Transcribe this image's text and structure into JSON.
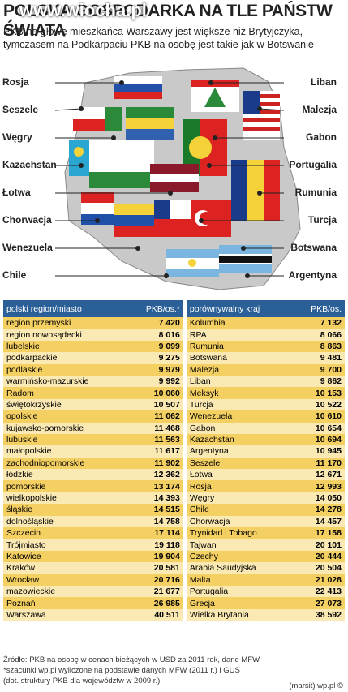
{
  "header": {
    "title": "POLSKA GOSPODARKA NA TLE PAŃSTW ŚWIATA",
    "watermark": "www.wiocha.pl",
    "subtitle": [
      "PKB na głowę mieszkańca Warszawy jest większe niż Brytyjczyka,",
      "tymczasem na Podkarpaciu PKB na osobę jest takie jak w Botswanie"
    ]
  },
  "map": {
    "left": [
      "Rosja",
      "Seszele",
      "Węgry",
      "Kazachstan",
      "Łotwa",
      "Chorwacja",
      "Wenezuela",
      "Chile"
    ],
    "right": [
      "Liban",
      "Malezja",
      "Gabon",
      "Portugalia",
      "Rumunia",
      "Turcja",
      "Botswana",
      "Argentyna"
    ]
  },
  "table": {
    "columns": [
      "polski region/miasto",
      "PKB/os.*",
      "porównywalny kraj",
      "PKB/os."
    ],
    "rows": [
      [
        "region przemyski",
        "7 420",
        "Kolumbia",
        "7 132"
      ],
      [
        "region nowosądecki",
        "8 016",
        "RPA",
        "8 066"
      ],
      [
        "lubelskie",
        "9 099",
        "Rumunia",
        "8 863"
      ],
      [
        "podkarpackie",
        "9 275",
        "Botswana",
        "9 481"
      ],
      [
        "podlaskie",
        "9 979",
        "Malezja",
        "9 700"
      ],
      [
        "warmińsko-mazurskie",
        "9 992",
        "Liban",
        "9 862"
      ],
      [
        "Radom",
        "10 060",
        "Meksyk",
        "10 153"
      ],
      [
        "świętokrzyskie",
        "10 507",
        "Turcja",
        "10 522"
      ],
      [
        "opolskie",
        "11 062",
        "Wenezuela",
        "10 610"
      ],
      [
        "kujawsko-pomorskie",
        "11 468",
        "Gabon",
        "10 654"
      ],
      [
        "lubuskie",
        "11 563",
        "Kazachstan",
        "10 694"
      ],
      [
        "małopolskie",
        "11 617",
        "Argentyna",
        "10 945"
      ],
      [
        "zachodniopomorskie",
        "11 902",
        "Seszele",
        "11 170"
      ],
      [
        "łódzkie",
        "12 362",
        "Łotwa",
        "12 671"
      ],
      [
        "pomorskie",
        "13 174",
        "Rosja",
        "12 993"
      ],
      [
        "wielkopolskie",
        "14 393",
        "Węgry",
        "14 050"
      ],
      [
        "śląskie",
        "14 515",
        "Chile",
        "14 278"
      ],
      [
        "dolnośląskie",
        "14 758",
        "Chorwacja",
        "14 457"
      ],
      [
        "Szczecin",
        "17 114",
        "Trynidad i Tobago",
        "17 158"
      ],
      [
        "Trójmiasto",
        "19 118",
        "Tajwan",
        "20 101"
      ],
      [
        "Katowice",
        "19 904",
        "Czechy",
        "20 444"
      ],
      [
        "Kraków",
        "20 581",
        "Arabia Saudyjska",
        "20 504"
      ],
      [
        "Wrocław",
        "20 716",
        "Malta",
        "21 028"
      ],
      [
        "mazowieckie",
        "21 677",
        "Portugalia",
        "22 413"
      ],
      [
        "Poznań",
        "26 985",
        "Grecja",
        "27 073"
      ],
      [
        "Warszawa",
        "40 511",
        "Wielka Brytania",
        "38 592"
      ]
    ]
  },
  "footer": {
    "notes": [
      "Źródło: PKB na osobę w cenach bieżących w USD za 2011 rok, dane MFW",
      "*szacunki wp.pl wyliczone na podstawie danych MFW (2011 r.) i GUS",
      "(dot. struktury PKB dla województw w 2009 r.)"
    ],
    "credit": "(marsit) wp.pl ©"
  }
}
